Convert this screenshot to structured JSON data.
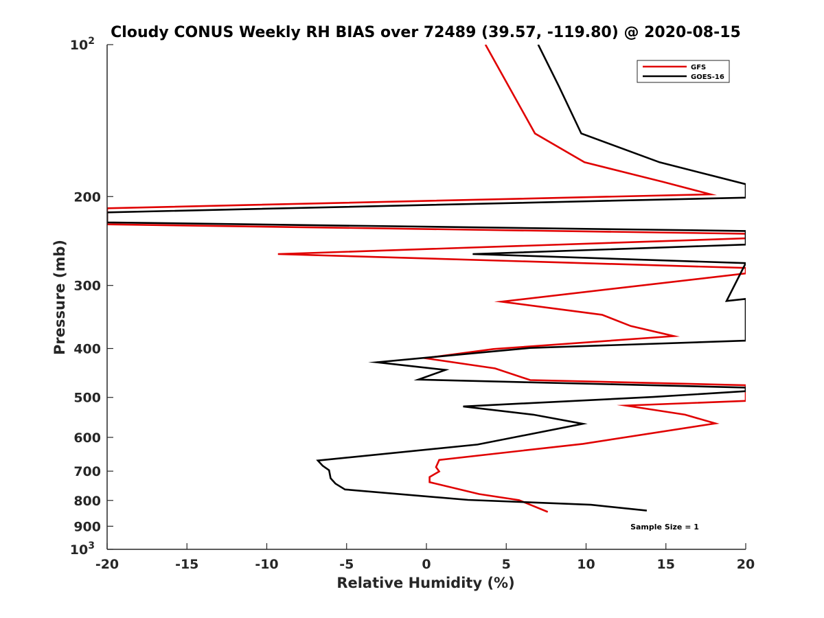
{
  "chart_data": {
    "type": "line",
    "title": "Cloudy CONUS Weekly RH BIAS over 72489 (39.57, -119.80) @ 2020-08-15",
    "xlabel": "Relative Humidity (%)",
    "ylabel": "Pressure (mb)",
    "xlim": [
      -20,
      20
    ],
    "ylim": [
      100,
      1000
    ],
    "yscale": "log",
    "y_reversed": true,
    "xticks": [
      -20,
      -15,
      -10,
      -5,
      0,
      5,
      10,
      15,
      20
    ],
    "xtick_labels": [
      "-20",
      "-15",
      "-10",
      "-5",
      "0",
      "5",
      "10",
      "15",
      "20"
    ],
    "yticks": [
      {
        "value": 100,
        "label": "10",
        "sup": "2"
      },
      {
        "value": 200,
        "label": "200",
        "sup": ""
      },
      {
        "value": 300,
        "label": "300",
        "sup": ""
      },
      {
        "value": 400,
        "label": "400",
        "sup": ""
      },
      {
        "value": 500,
        "label": "500",
        "sup": ""
      },
      {
        "value": 600,
        "label": "600",
        "sup": ""
      },
      {
        "value": 700,
        "label": "700",
        "sup": ""
      },
      {
        "value": 800,
        "label": "800",
        "sup": ""
      },
      {
        "value": 900,
        "label": "900",
        "sup": ""
      },
      {
        "value": 1000,
        "label": "10",
        "sup": "3"
      }
    ],
    "legend_position": "top-right",
    "annotation": "Sample Size = 1",
    "series": [
      {
        "name": "GFS",
        "color": "#e00000",
        "points": [
          [
            3.7,
            100
          ],
          [
            6.8,
            150
          ],
          [
            9.9,
            171
          ],
          [
            14.8,
            187
          ],
          [
            17.8,
            198
          ],
          [
            -20,
            211
          ],
          [
            -20,
            227
          ],
          [
            20,
            237
          ],
          [
            20,
            242
          ],
          [
            -9.3,
            260
          ],
          [
            20,
            277
          ],
          [
            20,
            284
          ],
          [
            4.7,
            323
          ],
          [
            11,
            343
          ],
          [
            12.8,
            361
          ],
          [
            15.5,
            378
          ],
          [
            4.2,
            401
          ],
          [
            -0.1,
            418
          ],
          [
            4.3,
            438
          ],
          [
            6.5,
            462
          ],
          [
            20,
            473
          ],
          [
            20,
            508
          ],
          [
            12.5,
            519
          ],
          [
            16.2,
            541
          ],
          [
            18.1,
            563
          ],
          [
            9.8,
            618
          ],
          [
            0.8,
            665
          ],
          [
            0.6,
            687
          ],
          [
            0.8,
            701
          ],
          [
            0.2,
            719
          ],
          [
            0.2,
            736
          ],
          [
            3.3,
            777
          ],
          [
            5.8,
            799
          ],
          [
            7.6,
            843
          ]
        ]
      },
      {
        "name": "GOES-16",
        "color": "#000000",
        "points": [
          [
            7,
            100
          ],
          [
            8.3,
            121
          ],
          [
            9.7,
            150
          ],
          [
            14.6,
            171
          ],
          [
            20,
            189
          ],
          [
            20,
            201
          ],
          [
            -20,
            215
          ],
          [
            -20,
            225
          ],
          [
            20,
            234
          ],
          [
            20,
            249
          ],
          [
            2.9,
            260
          ],
          [
            20,
            271
          ],
          [
            18.8,
            322
          ],
          [
            20,
            319
          ],
          [
            20,
            327
          ],
          [
            20,
            386
          ],
          [
            6.5,
            399
          ],
          [
            -3.1,
            426
          ],
          [
            1.2,
            441
          ],
          [
            -0.5,
            461
          ],
          [
            20,
            478
          ],
          [
            20,
            486
          ],
          [
            14.2,
            499
          ],
          [
            2.3,
            521
          ],
          [
            6.7,
            541
          ],
          [
            9.8,
            564
          ],
          [
            3.2,
            620
          ],
          [
            -6.8,
            667
          ],
          [
            -6.5,
            683
          ],
          [
            -6.1,
            697
          ],
          [
            -6,
            723
          ],
          [
            -5.7,
            741
          ],
          [
            -5.1,
            761
          ],
          [
            2.6,
            798
          ],
          [
            10.3,
            816
          ],
          [
            13.8,
            838
          ]
        ]
      }
    ]
  }
}
